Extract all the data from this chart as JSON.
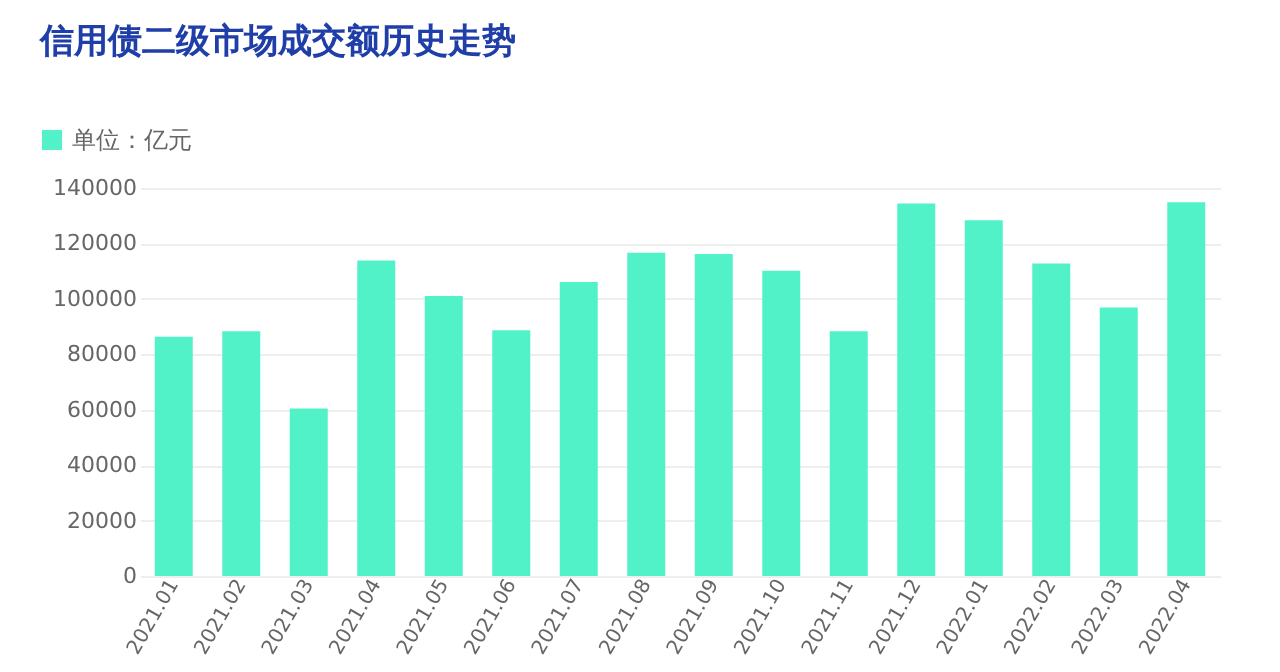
{
  "chart_data": {
    "type": "bar",
    "title": "信用债二级市场成交额历史走势",
    "categories": [
      "2021.01",
      "2021.02",
      "2021.03",
      "2021.04",
      "2021.05",
      "2021.06",
      "2021.07",
      "2021.08",
      "2021.09",
      "2021.10",
      "2021.11",
      "2021.12",
      "2022.01",
      "2022.02",
      "2022.03",
      "2022.04"
    ],
    "series": [
      {
        "name": "单位：亿元",
        "color": "#52f2c8",
        "values": [
          86300,
          88300,
          60400,
          113800,
          101000,
          88700,
          106100,
          116600,
          116200,
          110100,
          88300,
          134400,
          128400,
          112800,
          96900,
          134900
        ]
      }
    ],
    "ylim": [
      0,
      140000
    ],
    "yticks": [
      0,
      20000,
      40000,
      60000,
      80000,
      100000,
      120000,
      140000
    ],
    "grid": "y",
    "legend": "top left"
  }
}
